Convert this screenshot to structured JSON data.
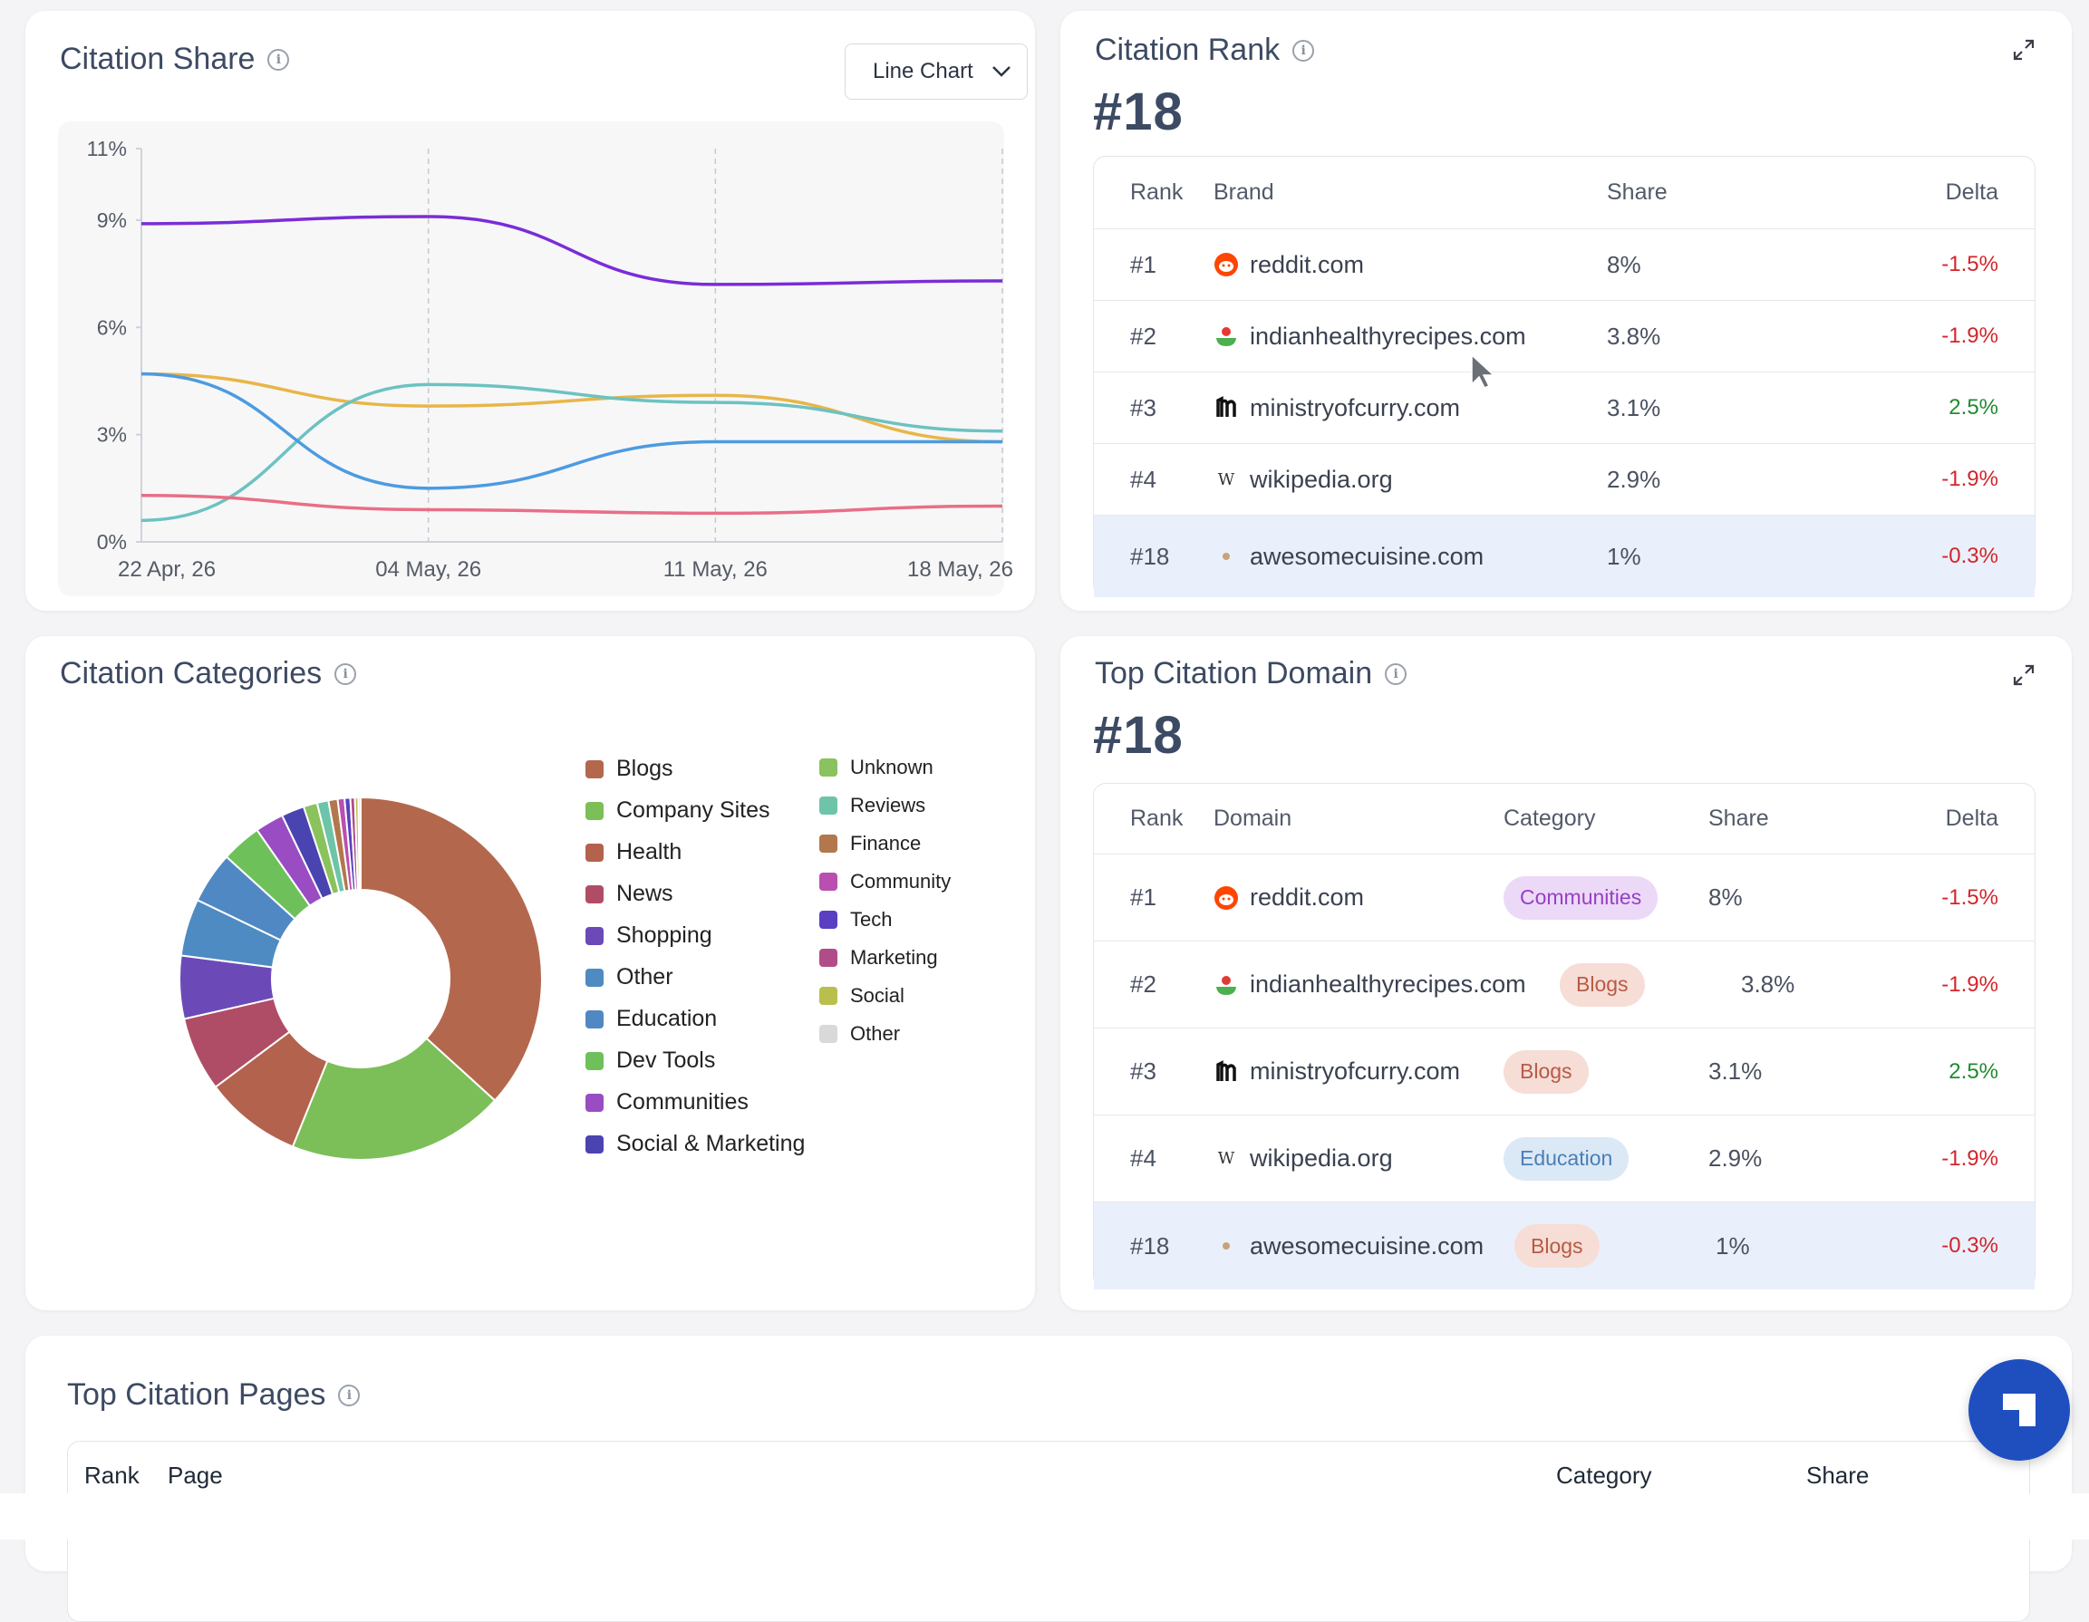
{
  "citation_share": {
    "title": "Citation Share",
    "chart_type_select": "Line Chart",
    "chart_data": {
      "type": "line",
      "x": [
        "22 Apr, 26",
        "04 May, 26",
        "11 May, 26",
        "18 May, 26"
      ],
      "y_ticks": [
        "0%",
        "3%",
        "6%",
        "9%",
        "11%"
      ],
      "ylim": [
        0,
        11
      ],
      "series": [
        {
          "color": "#7b2cd8",
          "values": [
            8.9,
            9.1,
            7.2,
            7.3
          ]
        },
        {
          "color": "#e8b648",
          "values": [
            4.7,
            3.8,
            4.1,
            2.8
          ]
        },
        {
          "color": "#6cc2c1",
          "values": [
            0.6,
            4.4,
            3.9,
            3.1
          ]
        },
        {
          "color": "#4d9be0",
          "values": [
            4.7,
            1.5,
            2.8,
            2.8
          ]
        },
        {
          "color": "#e86f86",
          "values": [
            1.3,
            0.9,
            0.8,
            1.0
          ]
        }
      ]
    }
  },
  "citation_rank": {
    "title": "Citation Rank",
    "rank": "#18",
    "headers": {
      "rank": "Rank",
      "brand": "Brand",
      "share": "Share",
      "delta": "Delta"
    },
    "rows": [
      {
        "rank": "#1",
        "brand": "reddit.com",
        "share": "8%",
        "delta": "-1.5%"
      },
      {
        "rank": "#2",
        "brand": "indianhealthyrecipes.com",
        "share": "3.8%",
        "delta": "-1.9%"
      },
      {
        "rank": "#3",
        "brand": "ministryofcurry.com",
        "share": "3.1%",
        "delta": "2.5%"
      },
      {
        "rank": "#4",
        "brand": "wikipedia.org",
        "share": "2.9%",
        "delta": "-1.9%"
      },
      {
        "rank": "#18",
        "brand": "awesomecuisine.com",
        "share": "1%",
        "delta": "-0.3%"
      }
    ]
  },
  "citation_categories": {
    "title": "Citation Categories",
    "chart_data": {
      "type": "pie",
      "categories": [
        "Blogs",
        "Company Sites",
        "Health",
        "News",
        "Shopping",
        "Other",
        "Education",
        "Dev Tools",
        "Communities",
        "Social & Marketing",
        "Unknown",
        "Reviews",
        "Finance",
        "Community",
        "Tech",
        "Marketing",
        "Social",
        "Other"
      ],
      "values": [
        36,
        19,
        8.5,
        6.5,
        5.5,
        5,
        4.5,
        3.5,
        2.5,
        2,
        1.2,
        1,
        0.8,
        0.6,
        0.5,
        0.4,
        0.3,
        0.2
      ],
      "colors": [
        "#b3684d",
        "#7cbf59",
        "#b3624d",
        "#b04d66",
        "#6b4ab8",
        "#4d8bc2",
        "#5088c4",
        "#6ec05b",
        "#9a4dc2",
        "#4a44b0",
        "#8ac25e",
        "#6ec4a8",
        "#b3774d",
        "#b94fb0",
        "#5a3fc2",
        "#b04d88",
        "#b8bf4d",
        "#d9d9d9"
      ]
    }
  },
  "top_citation_domain": {
    "title": "Top Citation Domain",
    "rank": "#18",
    "headers": {
      "rank": "Rank",
      "domain": "Domain",
      "category": "Category",
      "share": "Share",
      "delta": "Delta"
    },
    "rows": [
      {
        "rank": "#1",
        "domain": "reddit.com",
        "category": "Communities",
        "share": "8%",
        "delta": "-1.5%"
      },
      {
        "rank": "#2",
        "domain": "indianhealthyrecipes.com",
        "category": "Blogs",
        "share": "3.8%",
        "delta": "-1.9%"
      },
      {
        "rank": "#3",
        "domain": "ministryofcurry.com",
        "category": "Blogs",
        "share": "3.1%",
        "delta": "2.5%"
      },
      {
        "rank": "#4",
        "domain": "wikipedia.org",
        "category": "Education",
        "share": "2.9%",
        "delta": "-1.9%"
      },
      {
        "rank": "#18",
        "domain": "awesomecuisine.com",
        "category": "Blogs",
        "share": "1%",
        "delta": "-0.3%"
      }
    ]
  },
  "top_citation_pages": {
    "title": "Top Citation Pages",
    "headers": {
      "rank": "Rank",
      "page": "Page",
      "category": "Category",
      "share": "Share"
    }
  }
}
